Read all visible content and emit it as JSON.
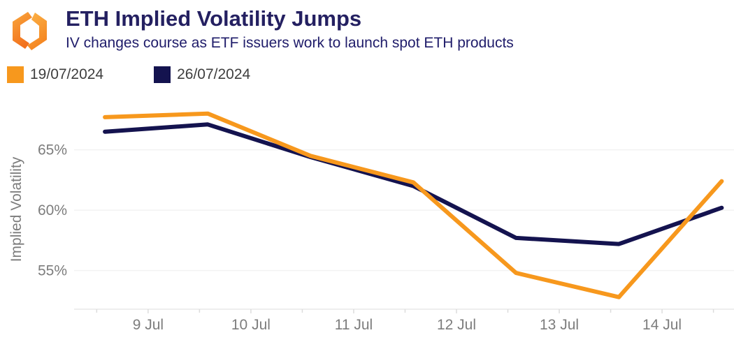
{
  "colors": {
    "title": "#242061",
    "subtitle": "#1f1c6a",
    "legend_text": "#3e3e3e",
    "axis_text": "#7d7d7d",
    "grid": "#f2f2f2",
    "axis_line": "#e8e8e8",
    "tick": "#dcdcdc",
    "orange": "#F7981D",
    "navy": "#14134F"
  },
  "logo": {
    "icon": "orange-bracket-diamond-logo"
  },
  "chart_data": {
    "type": "line",
    "title": "ETH Implied Volatility Jumps",
    "subtitle": "IV changes course as ETF issuers work to launch spot ETH products",
    "ylabel": "Implied Volatility",
    "xlabel": "",
    "legend_position": "top-left",
    "grid": "horizontal-only",
    "x_days": [
      8.58,
      9.58,
      10.58,
      11.58,
      12.58,
      13.58,
      14.58
    ],
    "series": [
      {
        "name": "19/07/2024",
        "color": "#F7981D",
        "values": [
          67.7,
          68.0,
          64.5,
          62.3,
          54.8,
          52.8,
          62.4
        ]
      },
      {
        "name": "26/07/2024",
        "color": "#14134F",
        "values": [
          66.5,
          67.1,
          64.4,
          62.0,
          57.7,
          57.2,
          60.2
        ]
      }
    ],
    "xticks": [
      {
        "value": 9,
        "label": "9 Jul"
      },
      {
        "value": 10,
        "label": "10 Jul"
      },
      {
        "value": 11,
        "label": "11 Jul"
      },
      {
        "value": 12,
        "label": "12 Jul"
      },
      {
        "value": 13,
        "label": "13 Jul"
      },
      {
        "value": 14,
        "label": "14 Jul"
      }
    ],
    "minor_ticks_days": [
      8.5,
      9.5,
      10.5,
      11.5,
      12.5,
      13.5,
      14.5
    ],
    "yticks": [
      {
        "value": 55,
        "label": "55%"
      },
      {
        "value": 60,
        "label": "60%"
      },
      {
        "value": 65,
        "label": "65%"
      }
    ],
    "ylim": [
      51.8,
      68.8
    ],
    "xlim_days": [
      8.28,
      14.7
    ]
  }
}
